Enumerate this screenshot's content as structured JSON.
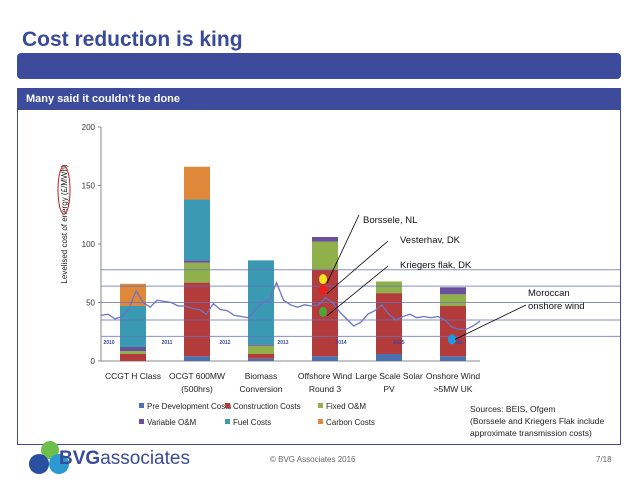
{
  "header": {
    "title": "Cost reduction is king",
    "box_title": "Many said it couldn’t  be done"
  },
  "colors": {
    "brand": "#3c4b9c",
    "pre": "#4a72b0",
    "construction": "#b33b3b",
    "fixed": "#8fb04a",
    "variable": "#6b4f9a",
    "fuel": "#3a9ab3",
    "carbon": "#e0883a"
  },
  "chart_data": {
    "type": "bar",
    "stacked": true,
    "ylabel": "Levelised cost of energy (£/MWh)",
    "ylim": [
      0,
      200
    ],
    "yticks": [
      "0",
      "50",
      "100",
      "150",
      "200"
    ],
    "categories": [
      "CCGT H Class",
      "OCGT 600MW (500hrs)",
      "Biomass Conversion",
      "Offshore Wind Round 3",
      "Large Scale Solar PV",
      "Onshore Wind >5MW UK"
    ],
    "category_lines": [
      [
        "CCGT H Class"
      ],
      [
        "OCGT 600MW",
        "(500hrs)"
      ],
      [
        "Biomass",
        "Conversion"
      ],
      [
        "Offshore Wind",
        "Round 3"
      ],
      [
        "Large Scale Solar",
        "PV"
      ],
      [
        "Onshore Wind",
        ">5MW UK"
      ]
    ],
    "series": [
      {
        "name": "Pre Development Costs",
        "values": [
          0,
          4,
          2,
          4,
          6,
          4
        ]
      },
      {
        "name": "Construction Costs",
        "values": [
          6,
          63,
          4,
          74,
          52,
          43
        ]
      },
      {
        "name": "Fixed O&M",
        "values": [
          2.5,
          17,
          7,
          24,
          10,
          10
        ]
      },
      {
        "name": "Variable O&M",
        "values": [
          3.5,
          2,
          1,
          4,
          0,
          6
        ]
      },
      {
        "name": "Fuel Costs",
        "values": [
          35,
          52,
          72,
          0,
          0,
          0
        ]
      },
      {
        "name": "Carbon Costs",
        "values": [
          19,
          28,
          0,
          0,
          0,
          0
        ]
      }
    ],
    "legend_position": "bottom",
    "markers": [
      {
        "label": "Borssele, NL",
        "category": "Offshore Wind Round 3",
        "value": 70,
        "color": "#f5e51a"
      },
      {
        "label": "Vesterhav, DK",
        "category": "Offshore Wind Round 3",
        "value": 61,
        "color": "#e8201e"
      },
      {
        "label": "Kriegers flak, DK",
        "category": "Offshore Wind Round 3",
        "value": 42,
        "color": "#4aa83a"
      },
      {
        "label": "Moroccan onshore wind",
        "label_lines": [
          "Moroccan",
          "onshore wind"
        ],
        "category": "Onshore Wind >5MW UK",
        "value": 18.5,
        "color": "#1a9ae0"
      }
    ],
    "overlay": {
      "years": [
        "2010",
        "2011",
        "2012",
        "2013",
        "2014",
        "2015",
        "2016"
      ],
      "reference_lines": [
        78,
        64,
        50,
        35,
        21
      ],
      "values": [
        39,
        40,
        36,
        38,
        45,
        60,
        50,
        46,
        52,
        51,
        50,
        47,
        47,
        45,
        44,
        40,
        49,
        44,
        43,
        39,
        38,
        37,
        44,
        50,
        52,
        67,
        52,
        48,
        46,
        48,
        47,
        48,
        54,
        50,
        42,
        36,
        30,
        33,
        40,
        43,
        48,
        40,
        35,
        38,
        40,
        37,
        38,
        37,
        38,
        35,
        29,
        27,
        27,
        30,
        34
      ]
    }
  },
  "sources": [
    "Sources: BEIS, Ofgem",
    "(Borssele and Kriegers Flak include",
    "approximate transmission costs)"
  ],
  "footer": {
    "logo_bold": "BVG",
    "logo_rest": "associates",
    "copyright": "© BVG Associates 2016",
    "page": "7/18"
  }
}
